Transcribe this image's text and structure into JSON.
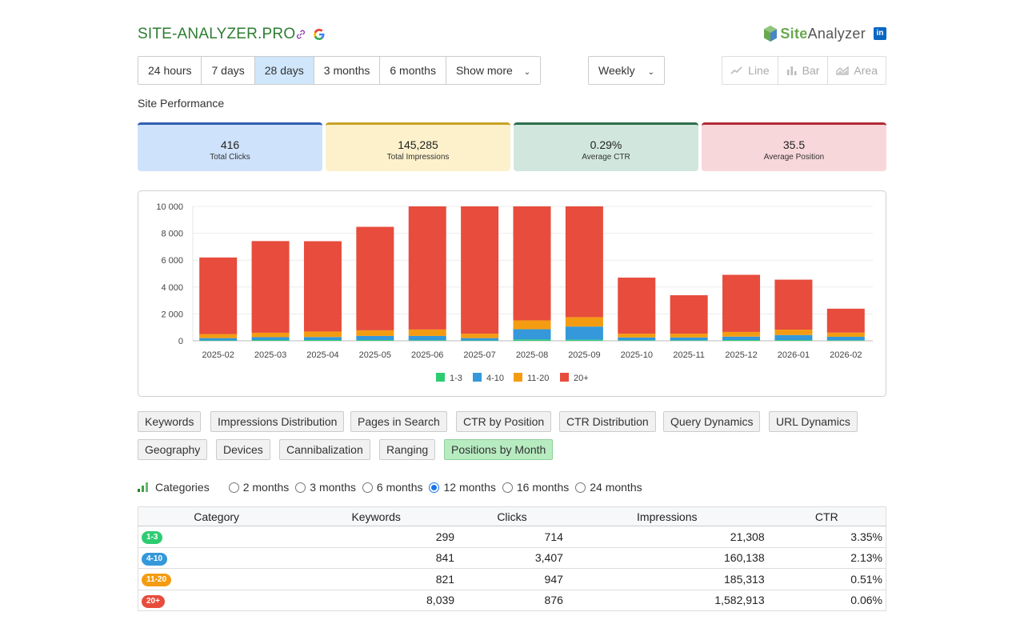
{
  "header": {
    "site_title": "SITE-ANALYZER.PRO",
    "brand_part1": "Site",
    "brand_part2": "Analyzer",
    "linkedin_label": "in"
  },
  "range_buttons": [
    {
      "label": "24 hours",
      "active": false
    },
    {
      "label": "7 days",
      "active": false
    },
    {
      "label": "28 days",
      "active": true
    },
    {
      "label": "3 months",
      "active": false
    },
    {
      "label": "6 months",
      "active": false
    },
    {
      "label": "Show more",
      "active": false
    }
  ],
  "interval_select": {
    "value": "Weekly"
  },
  "chart_type_buttons": [
    {
      "label": "Line",
      "icon": "line-chart-icon"
    },
    {
      "label": "Bar",
      "icon": "bar-chart-icon"
    },
    {
      "label": "Area",
      "icon": "area-chart-icon"
    }
  ],
  "section_title": "Site Performance",
  "metrics": [
    {
      "value": "416",
      "label": "Total Clicks"
    },
    {
      "value": "145,285",
      "label": "Total Impressions"
    },
    {
      "value": "0.29%",
      "label": "Average CTR"
    },
    {
      "value": "35.5",
      "label": "Average Position"
    }
  ],
  "chart_data": {
    "type": "bar",
    "stacked": true,
    "categories": [
      "2025-02",
      "2025-03",
      "2025-04",
      "2025-05",
      "2025-06",
      "2025-07",
      "2025-08",
      "2025-09",
      "2025-10",
      "2025-11",
      "2025-12",
      "2026-01",
      "2026-02"
    ],
    "series": [
      {
        "name": "1-3",
        "color": "#2ecc71",
        "values": [
          30,
          60,
          60,
          60,
          40,
          30,
          100,
          80,
          40,
          40,
          60,
          60,
          40
        ]
      },
      {
        "name": "4-10",
        "color": "#3498db",
        "values": [
          170,
          210,
          220,
          300,
          320,
          170,
          760,
          980,
          210,
          210,
          250,
          370,
          260
        ]
      },
      {
        "name": "11-20",
        "color": "#f39c12",
        "values": [
          300,
          330,
          410,
          420,
          480,
          330,
          660,
          700,
          280,
          280,
          350,
          400,
          310
        ]
      },
      {
        "name": "20+",
        "color": "#e74c3c",
        "values": [
          5700,
          6820,
          6720,
          7700,
          9160,
          9470,
          8480,
          8240,
          4170,
          2860,
          4250,
          3720,
          1780
        ]
      }
    ],
    "ylim": [
      0,
      10000
    ],
    "yticks": [
      "0",
      "2 000",
      "4 000",
      "6 000",
      "8 000",
      "10 000"
    ],
    "ytick_values": [
      0,
      2000,
      4000,
      6000,
      8000,
      10000
    ],
    "legend_position": "bottom",
    "grid": true
  },
  "tabs": [
    {
      "label": "Keywords",
      "active": false
    },
    {
      "label": "Impressions Distribution",
      "active": false
    },
    {
      "label": "Pages in Search",
      "active": false
    },
    {
      "label": "CTR by Position",
      "active": false
    },
    {
      "label": "CTR Distribution",
      "active": false
    },
    {
      "label": "Query Dynamics",
      "active": false
    },
    {
      "label": "URL Dynamics",
      "active": false
    },
    {
      "label": "Geography",
      "active": false
    },
    {
      "label": "Devices",
      "active": false
    },
    {
      "label": "Cannibalization",
      "active": false
    },
    {
      "label": "Ranging",
      "active": false
    },
    {
      "label": "Positions by Month",
      "active": true
    }
  ],
  "categories": {
    "label": "Categories",
    "options": [
      {
        "label": "2 months",
        "checked": false
      },
      {
        "label": "3 months",
        "checked": false
      },
      {
        "label": "6 months",
        "checked": false
      },
      {
        "label": "12 months",
        "checked": true
      },
      {
        "label": "16 months",
        "checked": false
      },
      {
        "label": "24 months",
        "checked": false
      }
    ]
  },
  "table": {
    "headers": [
      "Category",
      "Keywords",
      "Clicks",
      "Impressions",
      "CTR"
    ],
    "rows": [
      {
        "category": "1-3",
        "color": "#2ecc71",
        "keywords": "299",
        "clicks": "714",
        "impressions": "21,308",
        "ctr": "3.35%"
      },
      {
        "category": "4-10",
        "color": "#3498db",
        "keywords": "841",
        "clicks": "3,407",
        "impressions": "160,138",
        "ctr": "2.13%"
      },
      {
        "category": "11-20",
        "color": "#f39c12",
        "keywords": "821",
        "clicks": "947",
        "impressions": "185,313",
        "ctr": "0.51%"
      },
      {
        "category": "20+",
        "color": "#e74c3c",
        "keywords": "8,039",
        "clicks": "876",
        "impressions": "1,582,913",
        "ctr": "0.06%"
      }
    ]
  }
}
